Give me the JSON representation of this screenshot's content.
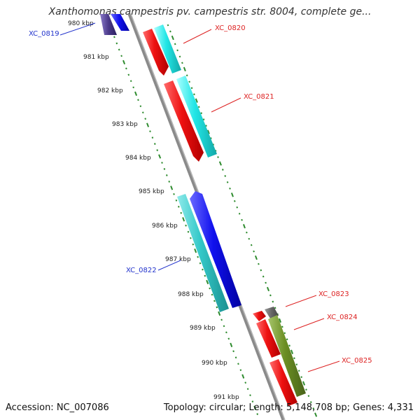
{
  "title": "Xanthomonas campestris pv. campestris str. 8004, complete ge...",
  "footer": {
    "accession": "Accession: NC_007086",
    "stats": "Topology: circular; Length: 5,148,708 bp; Genes: 4,331"
  },
  "colors": {
    "backbone": "#888888",
    "tick": "#2e8b2e",
    "forward_label": "#dd2222",
    "reverse_label": "#2233cc",
    "red": "#ee1111",
    "cyan": "#22dddd",
    "teal": "#33c8c8",
    "blue": "#1111ee",
    "navy": "#4b3a8a",
    "olive": "#6b8e23",
    "gray": "#666666"
  },
  "ticks": [
    "980 kbp",
    "981 kbp",
    "982 kbp",
    "983 kbp",
    "984 kbp",
    "985 kbp",
    "986 kbp",
    "987 kbp",
    "988 kbp",
    "989 kbp",
    "990 kbp",
    "991 kbp"
  ],
  "gene_labels": [
    {
      "name": "XC_0819",
      "strand": "reverse"
    },
    {
      "name": "XC_0820",
      "strand": "forward"
    },
    {
      "name": "XC_0821",
      "strand": "forward"
    },
    {
      "name": "XC_0822",
      "strand": "reverse"
    },
    {
      "name": "XC_0823",
      "strand": "forward"
    },
    {
      "name": "XC_0824",
      "strand": "forward"
    },
    {
      "name": "XC_0825",
      "strand": "forward"
    }
  ]
}
